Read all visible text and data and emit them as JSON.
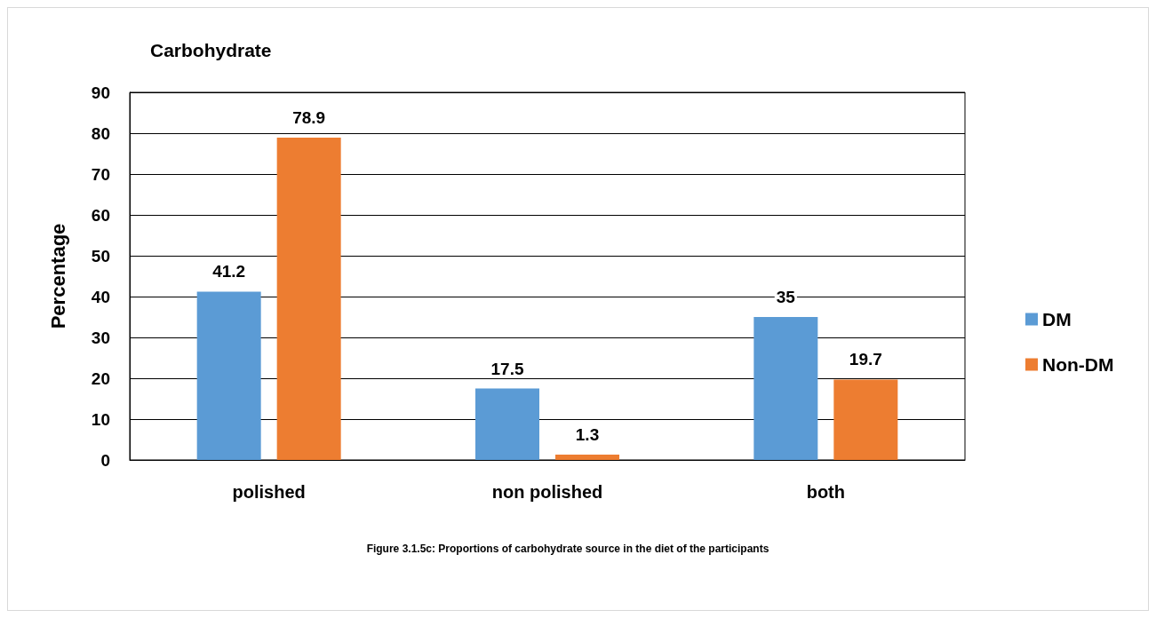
{
  "chart_data": {
    "type": "bar",
    "title": "Carbohydrate",
    "ylabel": "Percentage",
    "annotations": [
      "Figure 3.1.5c: Proportions of carbohydrate source in the diet of the participants"
    ],
    "categories": [
      "polished",
      "non polished",
      "both"
    ],
    "series": [
      {
        "name": "DM",
        "color": "#5b9bd5",
        "values": [
          41.2,
          17.5,
          35
        ]
      },
      {
        "name": "Non-DM",
        "color": "#ed7d31",
        "values": [
          78.9,
          1.3,
          19.7
        ]
      }
    ],
    "ylim": [
      0,
      90
    ],
    "yticks": [
      0,
      10,
      20,
      30,
      40,
      50,
      60,
      70,
      80,
      90
    ],
    "grid": true,
    "legend": "right",
    "data_labels": true
  }
}
